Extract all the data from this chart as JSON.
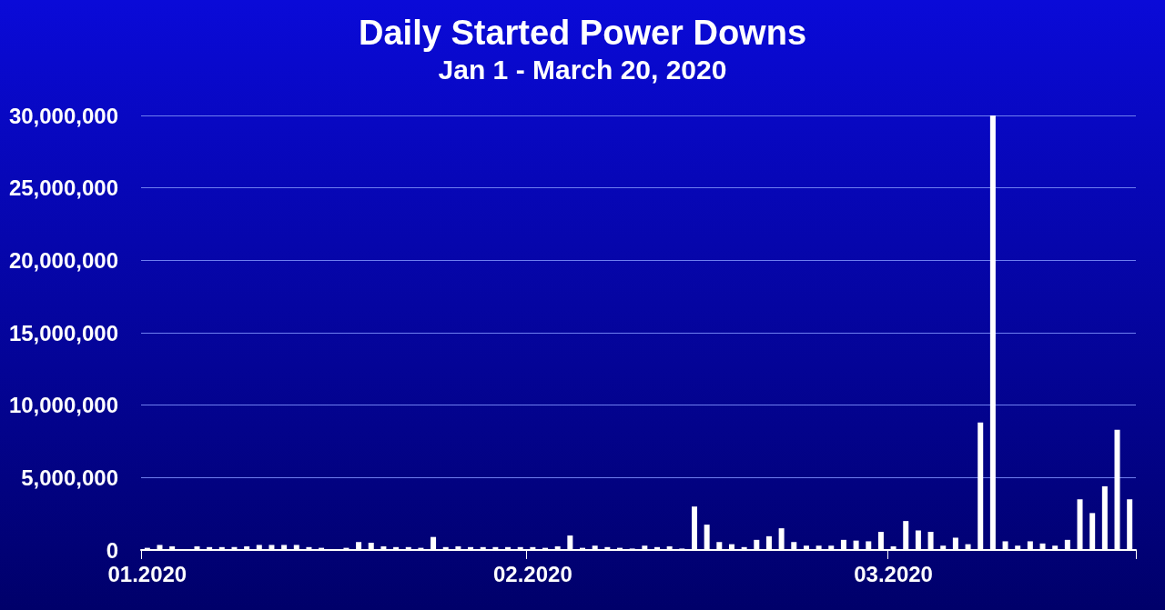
{
  "chart_data": {
    "type": "bar",
    "title": "Daily Started Power Downs",
    "subtitle": "Jan 1 - March 20, 2020",
    "categories": [
      "01.2020",
      null,
      null,
      null,
      null,
      null,
      null,
      null,
      null,
      null,
      null,
      null,
      null,
      null,
      null,
      null,
      null,
      null,
      null,
      null,
      null,
      null,
      null,
      null,
      null,
      null,
      null,
      null,
      null,
      null,
      null,
      "02.2020",
      null,
      null,
      null,
      null,
      null,
      null,
      null,
      null,
      null,
      null,
      null,
      null,
      null,
      null,
      null,
      null,
      null,
      null,
      null,
      null,
      null,
      null,
      null,
      null,
      null,
      null,
      null,
      null,
      "03.2020",
      null,
      null,
      null,
      null,
      null,
      null,
      null,
      null,
      null,
      null,
      null,
      null,
      null,
      null,
      null,
      null,
      null,
      null,
      null
    ],
    "values": [
      150000,
      350000,
      250000,
      50000,
      250000,
      200000,
      200000,
      200000,
      250000,
      350000,
      350000,
      350000,
      350000,
      200000,
      150000,
      50000,
      150000,
      550000,
      500000,
      250000,
      200000,
      200000,
      150000,
      900000,
      200000,
      250000,
      200000,
      200000,
      200000,
      200000,
      200000,
      200000,
      150000,
      250000,
      1000000,
      150000,
      300000,
      200000,
      150000,
      100000,
      300000,
      200000,
      250000,
      100000,
      3000000,
      1750000,
      550000,
      400000,
      200000,
      700000,
      950000,
      1500000,
      550000,
      300000,
      300000,
      300000,
      700000,
      650000,
      600000,
      1250000,
      250000,
      2000000,
      1350000,
      1250000,
      300000,
      850000,
      400000,
      8800000,
      30000000,
      600000,
      300000,
      600000,
      450000,
      300000,
      700000,
      3500000,
      2550000,
      4400000,
      8300000,
      3500000
    ],
    "color": "#ffffff",
    "ylim": [
      0,
      30000000
    ],
    "yticks": [
      0,
      {
        "value": 5000000,
        "label": "5,000,000"
      },
      {
        "value": 10000000,
        "label": "10,000,000"
      },
      {
        "value": 15000000,
        "label": "15,000,000"
      },
      {
        "value": 20000000,
        "label": "20,000,000"
      },
      {
        "value": 25000000,
        "label": "25,000,000"
      },
      {
        "value": 30000000,
        "label": "30,000,000"
      }
    ],
    "grid": "y"
  }
}
